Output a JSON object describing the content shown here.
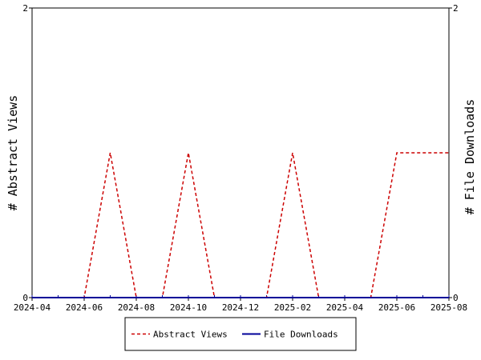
{
  "chart_data": {
    "type": "line",
    "x_ticks": [
      "2024-04",
      "2024-06",
      "2024-08",
      "2024-10",
      "2024-12",
      "2025-02",
      "2025-04",
      "2025-06",
      "2025-08"
    ],
    "ylabel_left": "# Abstract Views",
    "ylabel_right": "# File Downloads",
    "y_left_ticks": [
      "0",
      "2"
    ],
    "y_right_ticks": [
      "0",
      "2"
    ],
    "ylim_left": [
      0,
      2
    ],
    "ylim_right": [
      0,
      2
    ],
    "grid": false,
    "legend_position": "bottom-center",
    "series": [
      {
        "name": "Abstract Views",
        "axis": "left",
        "color": "#cc0000",
        "style": "dashed",
        "points": [
          [
            "2024-04",
            0
          ],
          [
            "2024-05",
            0
          ],
          [
            "2024-06",
            0
          ],
          [
            "2024-07",
            1
          ],
          [
            "2024-08",
            0
          ],
          [
            "2024-09",
            0
          ],
          [
            "2024-10",
            1
          ],
          [
            "2024-11",
            0
          ],
          [
            "2024-12",
            0
          ],
          [
            "2025-01",
            0
          ],
          [
            "2025-02",
            1
          ],
          [
            "2025-03",
            0
          ],
          [
            "2025-04",
            0
          ],
          [
            "2025-05",
            0
          ],
          [
            "2025-06",
            1
          ],
          [
            "2025-07",
            1
          ],
          [
            "2025-08",
            1
          ]
        ]
      },
      {
        "name": "File Downloads",
        "axis": "right",
        "color": "#000099",
        "style": "solid",
        "points": [
          [
            "2024-04",
            0
          ],
          [
            "2024-05",
            0
          ],
          [
            "2024-06",
            0
          ],
          [
            "2024-07",
            0
          ],
          [
            "2024-08",
            0
          ],
          [
            "2024-09",
            0
          ],
          [
            "2024-10",
            0
          ],
          [
            "2024-11",
            0
          ],
          [
            "2024-12",
            0
          ],
          [
            "2025-01",
            0
          ],
          [
            "2025-02",
            0
          ],
          [
            "2025-03",
            0
          ],
          [
            "2025-04",
            0
          ],
          [
            "2025-05",
            0
          ],
          [
            "2025-06",
            0
          ],
          [
            "2025-07",
            0
          ],
          [
            "2025-08",
            0
          ]
        ]
      }
    ]
  }
}
